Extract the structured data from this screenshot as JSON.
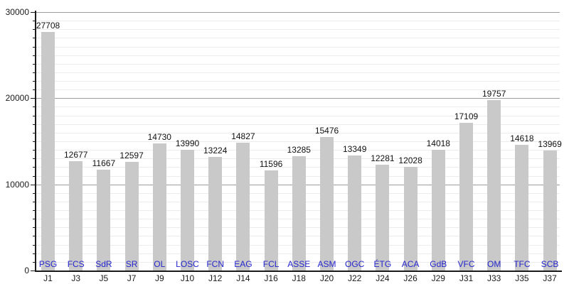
{
  "chart_data": {
    "type": "bar",
    "title": "",
    "xlabel": "",
    "ylabel": "",
    "ylim": [
      0,
      30000
    ],
    "y_major_ticks": [
      0,
      10000,
      20000,
      30000
    ],
    "y_major_tick_labels": [
      "0",
      "10000",
      "20000",
      "30000"
    ],
    "y_minor_step": 1000,
    "grid": true,
    "legend": "none",
    "categories": [
      "J1",
      "J3",
      "J5",
      "J7",
      "J9",
      "J10",
      "J12",
      "J14",
      "J16",
      "J18",
      "J20",
      "J22",
      "J24",
      "J26",
      "J29",
      "J31",
      "J33",
      "J35",
      "J37"
    ],
    "team_links": [
      "PSG",
      "FCS",
      "SdR",
      "SR",
      "OL",
      "LOSC",
      "FCN",
      "EAG",
      "FCL",
      "ASSE",
      "ASM",
      "OGC",
      "ÉTG",
      "ACA",
      "GdB",
      "VFC",
      "OM",
      "TFC",
      "SCB"
    ],
    "values": [
      27708,
      12677,
      11667,
      12597,
      14730,
      13990,
      13224,
      14827,
      11596,
      13285,
      15476,
      13349,
      12281,
      12028,
      14018,
      17109,
      19757,
      14618,
      13969
    ],
    "colors": {
      "bar": "#c9c9c9",
      "minor_grid": "#ececec",
      "major_grid": "#9c9c9c",
      "axis": "#1a1a1a",
      "value_label": "#111111",
      "tick_label": "#1a1a1a",
      "team_link": "#2424cc"
    }
  }
}
